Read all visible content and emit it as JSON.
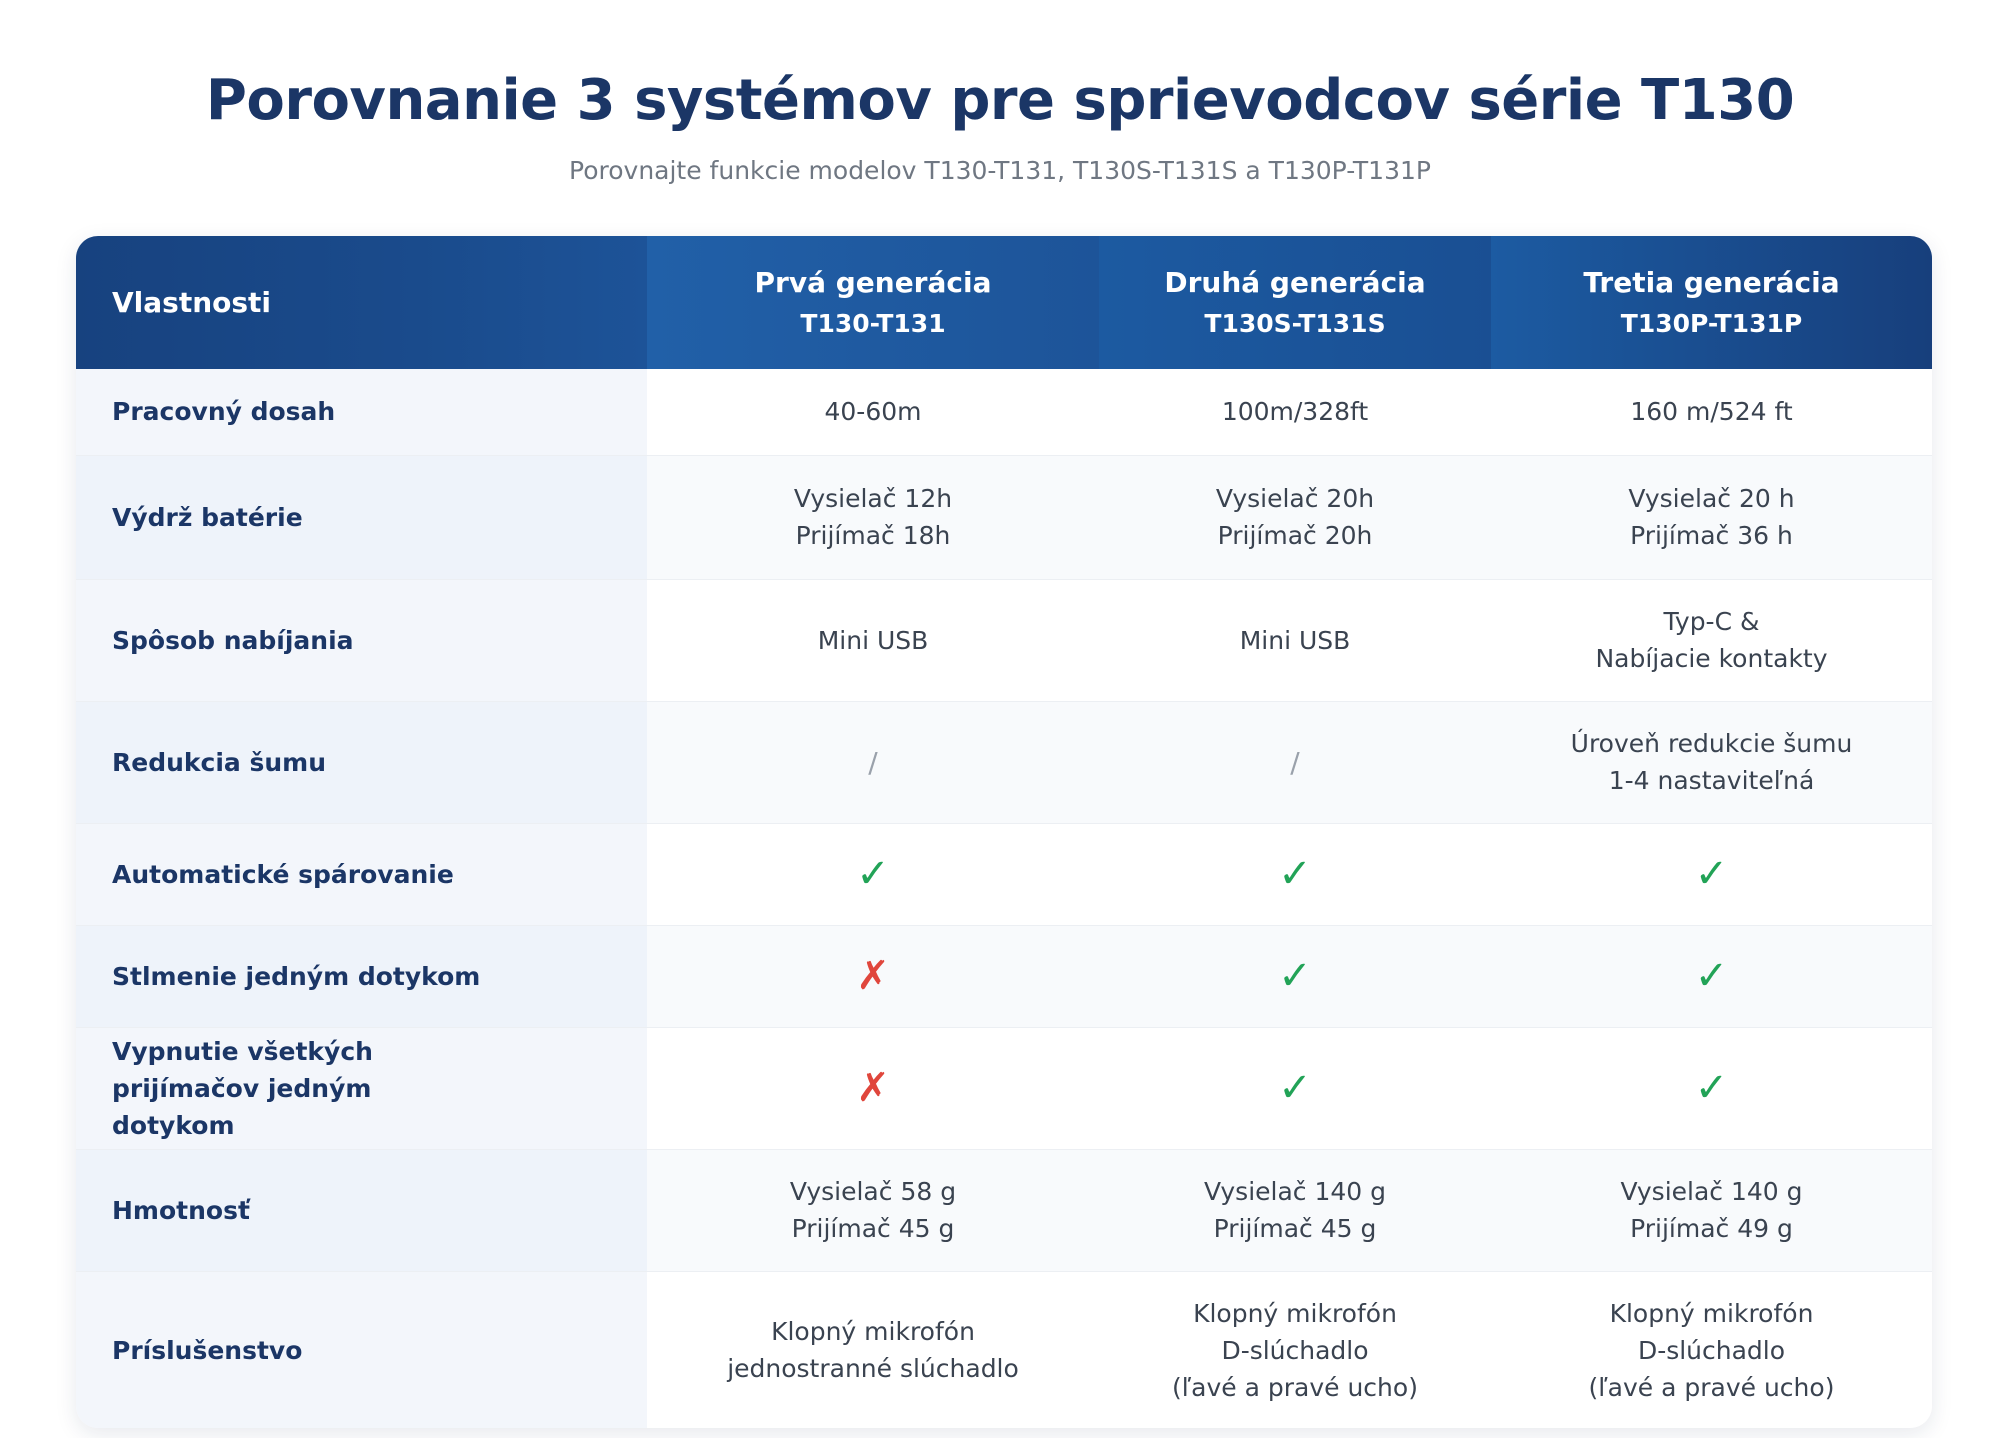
{
  "title": "Porovnanie 3 systémov pre sprievodcov série T130",
  "subtitle": "Porovnajte funkcie modelov T130-T131, T130S-T131S a T130P-T131P",
  "table": {
    "header": {
      "feature_label": "Vlastnosti",
      "columns": [
        {
          "generation": "Prvá generácia",
          "model": "T130-T131"
        },
        {
          "generation": "Druhá generácia",
          "model": "T130S-T131S"
        },
        {
          "generation": "Tretia generácia",
          "model": "T130P-T131P"
        }
      ]
    },
    "rows": [
      {
        "feature": "Pracovný dosah",
        "values": [
          [
            "40-60m"
          ],
          [
            "100m/328ft"
          ],
          [
            "160 m/524 ft"
          ]
        ]
      },
      {
        "feature": "Výdrž batérie",
        "values": [
          [
            "Vysielač 12h",
            "Prijímač 18h"
          ],
          [
            "Vysielač 20h",
            "Prijímač 20h"
          ],
          [
            "Vysielač 20 h",
            "Prijímač 36 h"
          ]
        ]
      },
      {
        "feature": "Spôsob nabíjania",
        "values": [
          [
            "Mini USB"
          ],
          [
            "Mini USB"
          ],
          [
            "Typ-C &",
            "Nabíjacie kontakty"
          ]
        ]
      },
      {
        "feature": "Redukcia šumu",
        "values": [
          [
            "/"
          ],
          [
            "/"
          ],
          [
            "Úroveň redukcie šumu",
            "1-4 nastaviteľná"
          ]
        ]
      },
      {
        "feature": "Automatické spárovanie",
        "values": [
          [
            "✓"
          ],
          [
            "✓"
          ],
          [
            "✓"
          ]
        ]
      },
      {
        "feature": "Stlmenie jedným dotykom",
        "values": [
          [
            "✗"
          ],
          [
            "✓"
          ],
          [
            "✓"
          ]
        ]
      },
      {
        "feature": "Vypnutie všetkých prijímačov jedným dotykom",
        "values": [
          [
            "✗"
          ],
          [
            "✓"
          ],
          [
            "✓"
          ]
        ]
      },
      {
        "feature": "Hmotnosť",
        "values": [
          [
            "Vysielač 58 g",
            "Prijímač 45 g"
          ],
          [
            "Vysielač 140 g",
            "Prijímač 45 g"
          ],
          [
            "Vysielač 140 g",
            "Prijímač 49 g"
          ]
        ]
      },
      {
        "feature": "Príslušenstvo",
        "values": [
          [
            "Klopný mikrofón",
            "jednostranné slúchadlo"
          ],
          [
            "Klopný mikrofón",
            "D-slúchadlo",
            "(ľavé a pravé ucho)"
          ],
          [
            "Klopný mikrofón",
            "D-slúchadlo",
            "(ľavé a pravé ucho)"
          ]
        ]
      }
    ]
  },
  "colors": {
    "title": "#1b3666",
    "header_bg": "#1d5398",
    "check": "#22a357",
    "cross": "#e0463c"
  }
}
